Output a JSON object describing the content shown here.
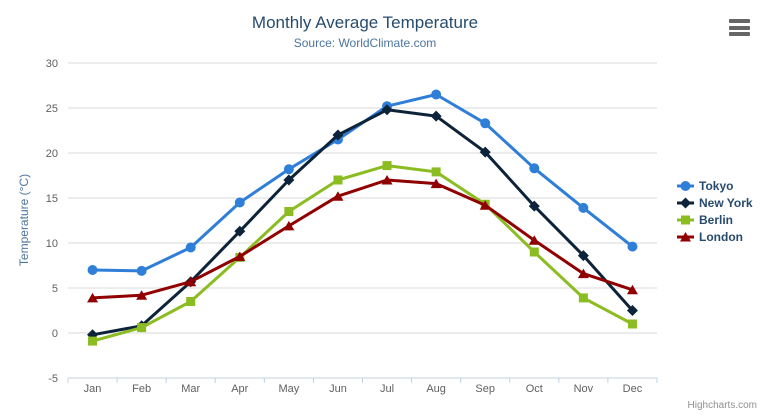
{
  "header": {
    "title": "Monthly Average Temperature",
    "subtitle": "Source: WorldClimate.com"
  },
  "credits": "Highcharts.com",
  "export_menu": {
    "icon": "hamburger-menu-icon"
  },
  "chart_data": {
    "type": "line",
    "title": "Monthly Average Temperature",
    "subtitle": "Source: WorldClimate.com",
    "xlabel": "",
    "ylabel": "Temperature (°C)",
    "ylim": [
      -5,
      30
    ],
    "yticks": [
      -5,
      0,
      5,
      10,
      15,
      20,
      25,
      30
    ],
    "grid": true,
    "legend_position": "right",
    "categories": [
      "Jan",
      "Feb",
      "Mar",
      "Apr",
      "May",
      "Jun",
      "Jul",
      "Aug",
      "Sep",
      "Oct",
      "Nov",
      "Dec"
    ],
    "series": [
      {
        "name": "Tokyo",
        "color": "#2f7ed8",
        "marker": "circle",
        "values": [
          7.0,
          6.9,
          9.5,
          14.5,
          18.2,
          21.5,
          25.2,
          26.5,
          23.3,
          18.3,
          13.9,
          9.6
        ]
      },
      {
        "name": "New York",
        "color": "#0d233a",
        "marker": "diamond",
        "values": [
          -0.2,
          0.8,
          5.7,
          11.3,
          17.0,
          22.0,
          24.8,
          24.1,
          20.1,
          14.1,
          8.6,
          2.5
        ]
      },
      {
        "name": "Berlin",
        "color": "#8bbc21",
        "marker": "square",
        "values": [
          -0.9,
          0.6,
          3.5,
          8.4,
          13.5,
          17.0,
          18.6,
          17.9,
          14.3,
          9.0,
          3.9,
          1.0
        ]
      },
      {
        "name": "London",
        "color": "#910000",
        "marker": "triangle",
        "values": [
          3.9,
          4.2,
          5.7,
          8.5,
          11.9,
          15.2,
          17.0,
          16.6,
          14.2,
          10.3,
          6.6,
          4.8
        ]
      }
    ]
  },
  "theme": {
    "title_color": "#274b6d",
    "subtitle_color": "#4d759e",
    "axis_title_color": "#4d759e",
    "tick_label_color": "#606060",
    "legend_text_color": "#274b6d",
    "grid_color": "#d8d8d8",
    "axis_line_color": "#c0d0e0",
    "credits_color": "#909090",
    "menu_icon_color": "#666666",
    "background": "#ffffff"
  }
}
